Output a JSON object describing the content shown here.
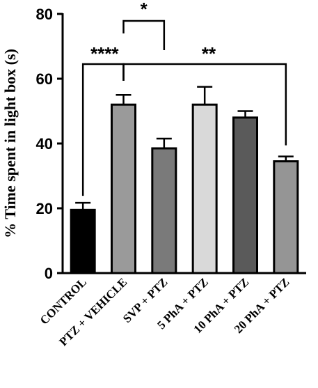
{
  "chart_data": {
    "type": "bar",
    "ylabel": "% Time spent in light box (s)",
    "ylim": [
      0,
      80
    ],
    "yticks": [
      0,
      20,
      40,
      60,
      80
    ],
    "categories": [
      "CONTROL",
      "PTZ + VEHICLE",
      "SVP + PTZ",
      "5 PhA + PTZ",
      "10 PhA + PTZ",
      "20 PhA + PTZ"
    ],
    "values": [
      19.5,
      52,
      38.5,
      52,
      48,
      34.5
    ],
    "errors": [
      2.2,
      3.0,
      3.0,
      5.5,
      2.0,
      1.5
    ],
    "colors": [
      "#000000",
      "#9a9a9a",
      "#7a7a7a",
      "#d9d9d9",
      "#5a5a5a",
      "#959595"
    ],
    "significance": [
      {
        "from": 0,
        "to": 1,
        "label": "****"
      },
      {
        "from": 1,
        "to": 2,
        "label": "*"
      },
      {
        "from": 1,
        "to": 5,
        "label": "**"
      }
    ]
  }
}
